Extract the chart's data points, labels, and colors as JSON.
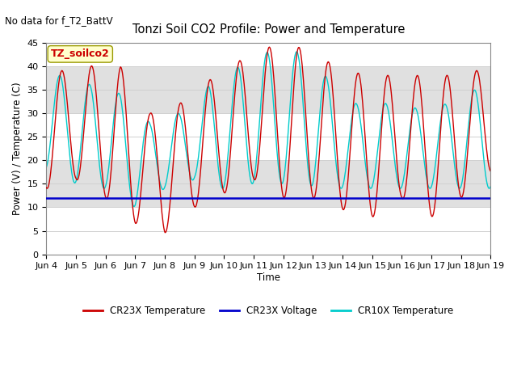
{
  "title": "Tonzi Soil CO2 Profile: Power and Temperature",
  "subtitle": "No data for f_T2_BattV",
  "ylabel": "Power (V) / Temperature (C)",
  "xlabel": "Time",
  "ylim": [
    0,
    45
  ],
  "yticks": [
    0,
    5,
    10,
    15,
    20,
    25,
    30,
    35,
    40,
    45
  ],
  "xtick_labels": [
    "Jun 4",
    "Jun 5",
    "Jun 6",
    "Jun 7",
    "Jun 8",
    "Jun 9",
    "Jun 10",
    "Jun 11",
    "Jun 12",
    "Jun 13",
    "Jun 14",
    "Jun 15",
    "Jun 16",
    "Jun 17",
    "Jun 18",
    "Jun 19"
  ],
  "annotation_box": "TZ_soilco2",
  "annotation_color": "#cc0000",
  "annotation_bg": "#ffffcc",
  "bg_color": "#ffffff",
  "plot_bg_light": "#ffffff",
  "plot_bg_dark": "#e0e0e0",
  "band_ranges": [
    [
      0,
      10
    ],
    [
      10,
      20
    ],
    [
      20,
      30
    ],
    [
      30,
      40
    ],
    [
      40,
      45
    ]
  ],
  "band_colors": [
    "#ffffff",
    "#e0e0e0",
    "#ffffff",
    "#e0e0e0",
    "#ffffff"
  ],
  "cr23x_temp_color": "#cc0000",
  "cr23x_volt_color": "#0000cc",
  "cr10x_temp_color": "#00cccc",
  "voltage_level": 12.0,
  "legend_labels": [
    "CR23X Temperature",
    "CR23X Voltage",
    "CR10X Temperature"
  ],
  "grid_color": "#d0d0d0",
  "figsize": [
    6.4,
    4.8
  ],
  "dpi": 100
}
